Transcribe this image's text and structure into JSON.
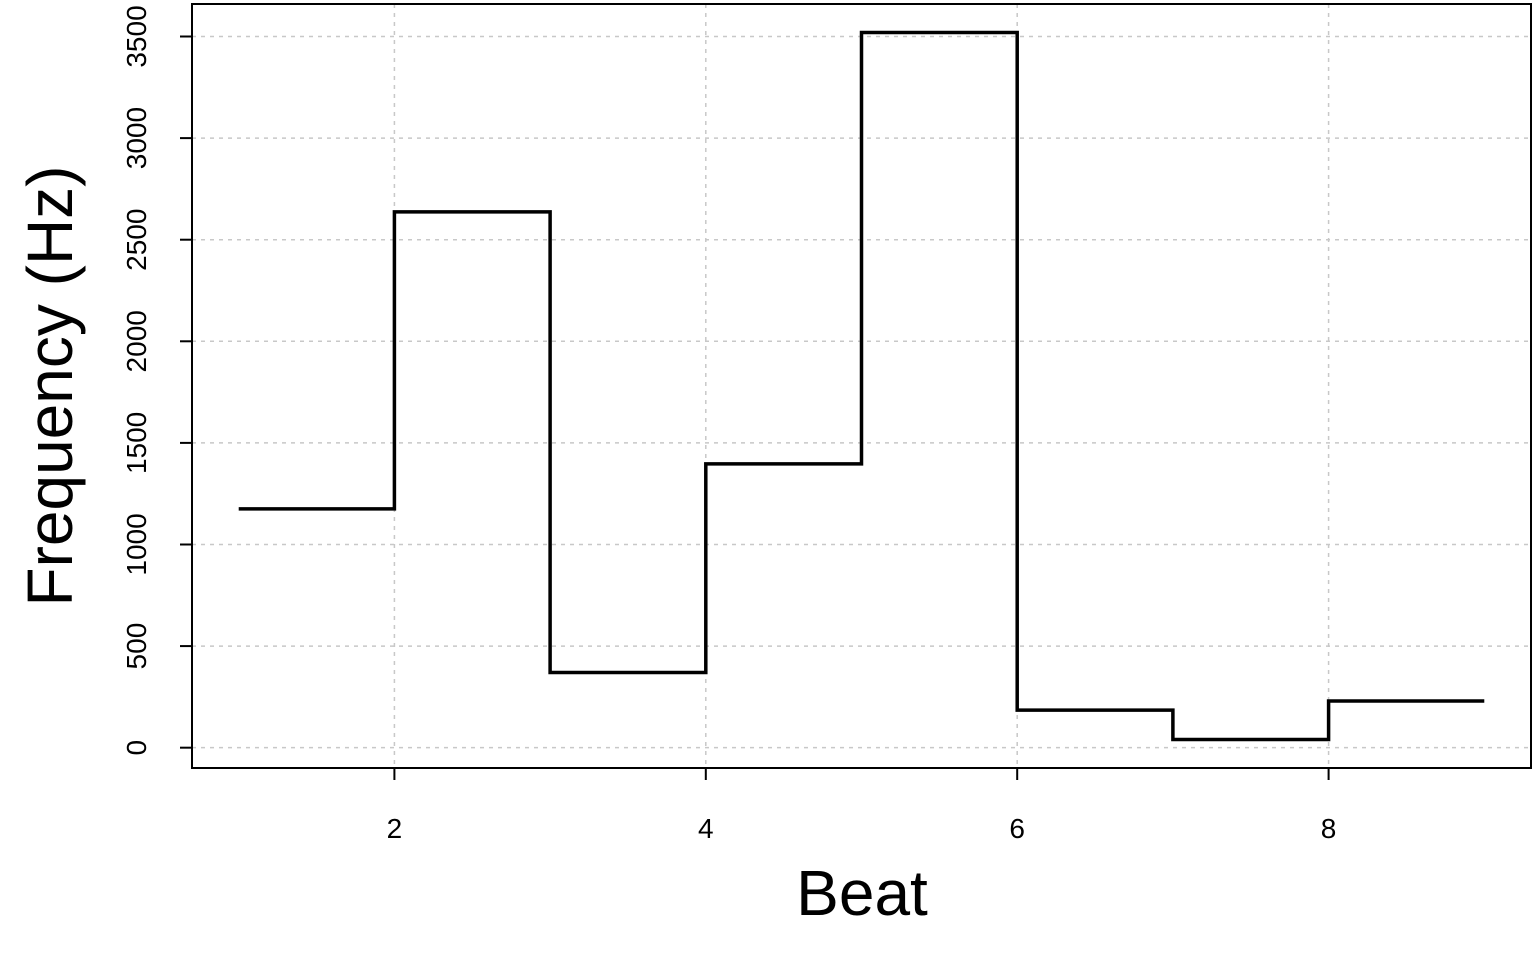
{
  "chart_data": {
    "type": "line",
    "style": "step",
    "title": "",
    "xlabel": "Beat",
    "ylabel": "Frequency (Hz)",
    "xlim": [
      0.7,
      9.3
    ],
    "ylim": [
      -100,
      3660
    ],
    "x_ticks": [
      2,
      4,
      6,
      8
    ],
    "y_ticks": [
      0,
      500,
      1000,
      1500,
      2000,
      2500,
      3000,
      3500
    ],
    "grid": true,
    "legend": "none",
    "series": [
      {
        "color": "#000000",
        "x": [
          1,
          2,
          3,
          4,
          5,
          6,
          7,
          8,
          9
        ],
        "y": [
          1175,
          2637,
          370,
          1397,
          3520,
          185,
          40,
          230,
          230
        ]
      }
    ]
  }
}
